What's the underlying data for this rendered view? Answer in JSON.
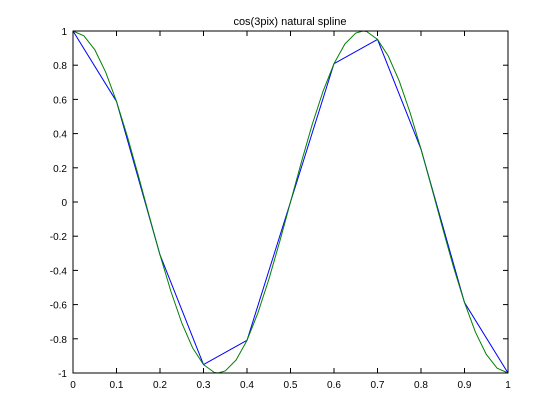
{
  "chart_data": {
    "type": "line",
    "title": "cos(3pix) natural spline",
    "xlabel": "",
    "ylabel": "",
    "xlim": [
      0,
      1
    ],
    "ylim": [
      -1,
      1
    ],
    "xticks": [
      0,
      0.1,
      0.2,
      0.3,
      0.4,
      0.5,
      0.6,
      0.7,
      0.8,
      0.9,
      1
    ],
    "xtick_labels": [
      "0",
      "0.1",
      "0.2",
      "0.3",
      "0.4",
      "0.5",
      "0.6",
      "0.7",
      "0.8",
      "0.9",
      "1"
    ],
    "yticks": [
      1,
      0.8,
      0.6,
      0.4,
      0.2,
      0,
      -0.2,
      -0.4,
      -0.6,
      -0.8,
      -1
    ],
    "ytick_labels": [
      "1",
      "0.8",
      "0.6",
      "0.4",
      "0.2",
      "0",
      "-0.2",
      "-0.4",
      "-0.6",
      "-0.8",
      "-1"
    ],
    "grid": false,
    "series": [
      {
        "color": "#0000ff",
        "style": "line",
        "x": [
          0,
          0.1,
          0.2,
          0.3,
          0.4,
          0.5,
          0.6,
          0.7,
          0.8,
          0.9,
          1.0
        ],
        "y": [
          1.0,
          0.588,
          -0.309,
          -0.951,
          -0.809,
          0.0,
          0.809,
          0.951,
          0.309,
          -0.588,
          -1.0
        ]
      },
      {
        "color": "#008000",
        "style": "curve",
        "x": [
          0,
          0.025,
          0.05,
          0.075,
          0.1,
          0.125,
          0.15,
          0.175,
          0.2,
          0.225,
          0.25,
          0.275,
          0.3,
          0.325,
          0.3333,
          0.35,
          0.375,
          0.4,
          0.425,
          0.45,
          0.475,
          0.5,
          0.525,
          0.55,
          0.575,
          0.6,
          0.625,
          0.65,
          0.6667,
          0.675,
          0.7,
          0.725,
          0.75,
          0.775,
          0.8,
          0.825,
          0.85,
          0.875,
          0.9,
          0.925,
          0.95,
          0.975,
          1.0
        ],
        "y": [
          1.0,
          0.972,
          0.891,
          0.76,
          0.588,
          0.383,
          0.156,
          -0.079,
          -0.309,
          -0.522,
          -0.707,
          -0.853,
          -0.951,
          -0.997,
          -1.0,
          -0.988,
          -0.924,
          -0.809,
          -0.649,
          -0.454,
          -0.233,
          0.0,
          0.233,
          0.454,
          0.649,
          0.809,
          0.924,
          0.988,
          1.0,
          0.997,
          0.951,
          0.853,
          0.707,
          0.522,
          0.309,
          0.079,
          -0.156,
          -0.383,
          -0.588,
          -0.76,
          -0.891,
          -0.972,
          -1.0
        ]
      }
    ]
  }
}
